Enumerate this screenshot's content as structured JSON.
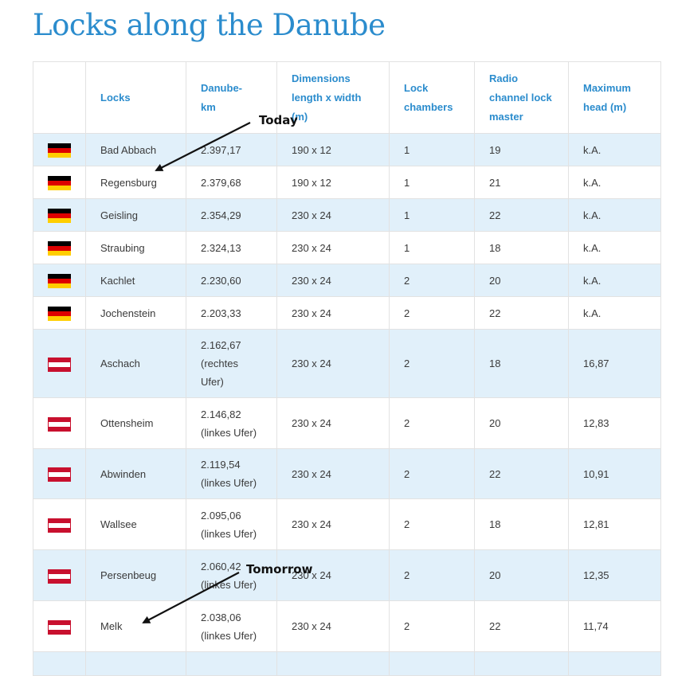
{
  "title": "Locks along the Danube",
  "columns": [
    "",
    "Locks",
    "Danube-\nkm",
    "Dimensions\nlength x width\n(m)",
    "Lock\nchambers",
    "Radio\nchannel lock\nmaster",
    "Maximum\nhead (m)"
  ],
  "rows": [
    {
      "flag": "germany-flag",
      "lock": "Bad Abbach",
      "km": "2.397,17",
      "dimensions": "190 x 12",
      "chambers": "1",
      "radio": "19",
      "head": "k.A."
    },
    {
      "flag": "germany-flag",
      "lock": "Regensburg",
      "km": "2.379,68",
      "dimensions": "190 x 12",
      "chambers": "1",
      "radio": "21",
      "head": "k.A."
    },
    {
      "flag": "germany-flag",
      "lock": "Geisling",
      "km": "2.354,29",
      "dimensions": "230 x 24",
      "chambers": "1",
      "radio": "22",
      "head": "k.A."
    },
    {
      "flag": "germany-flag",
      "lock": "Straubing",
      "km": "2.324,13",
      "dimensions": "230 x 24",
      "chambers": "1",
      "radio": "18",
      "head": "k.A."
    },
    {
      "flag": "germany-flag",
      "lock": "Kachlet",
      "km": "2.230,60",
      "dimensions": "230 x 24",
      "chambers": "2",
      "radio": "20",
      "head": "k.A."
    },
    {
      "flag": "germany-flag",
      "lock": "Jochenstein",
      "km": "2.203,33",
      "dimensions": "230 x 24",
      "chambers": "2",
      "radio": "22",
      "head": "k.A."
    },
    {
      "flag": "austria-flag",
      "lock": "Aschach",
      "km": "2.162,67\n(rechtes\nUfer)",
      "dimensions": "230 x 24",
      "chambers": "2",
      "radio": "18",
      "head": "16,87"
    },
    {
      "flag": "austria-flag",
      "lock": "Ottensheim",
      "km": "2.146,82\n(linkes Ufer)",
      "dimensions": "230 x 24",
      "chambers": "2",
      "radio": "20",
      "head": "12,83"
    },
    {
      "flag": "austria-flag",
      "lock": "Abwinden",
      "km": "2.119,54\n(linkes Ufer)",
      "dimensions": "230 x 24",
      "chambers": "2",
      "radio": "22",
      "head": "10,91"
    },
    {
      "flag": "austria-flag",
      "lock": "Wallsee",
      "km": "2.095,06\n(linkes Ufer)",
      "dimensions": "230 x 24",
      "chambers": "2",
      "radio": "18",
      "head": "12,81"
    },
    {
      "flag": "austria-flag",
      "lock": "Persenbeug",
      "km": "2.060,42\n(linkes Ufer)",
      "dimensions": "230 x 24",
      "chambers": "2",
      "radio": "20",
      "head": "12,35"
    },
    {
      "flag": "austria-flag",
      "lock": "Melk",
      "km": "2.038,06\n(linkes Ufer)",
      "dimensions": "230 x 24",
      "chambers": "2",
      "radio": "22",
      "head": "11,74"
    },
    {
      "flag": "",
      "lock": "",
      "km": "",
      "dimensions": "",
      "chambers": "",
      "radio": "",
      "head": ""
    }
  ],
  "annotations": {
    "today": "Today",
    "tomorrow": "Tomorrow"
  },
  "colors": {
    "title": "#2b8ccd",
    "header_text": "#2b8ccd",
    "alt_row": "#e1f0fa",
    "border": "#e2e2e2"
  }
}
